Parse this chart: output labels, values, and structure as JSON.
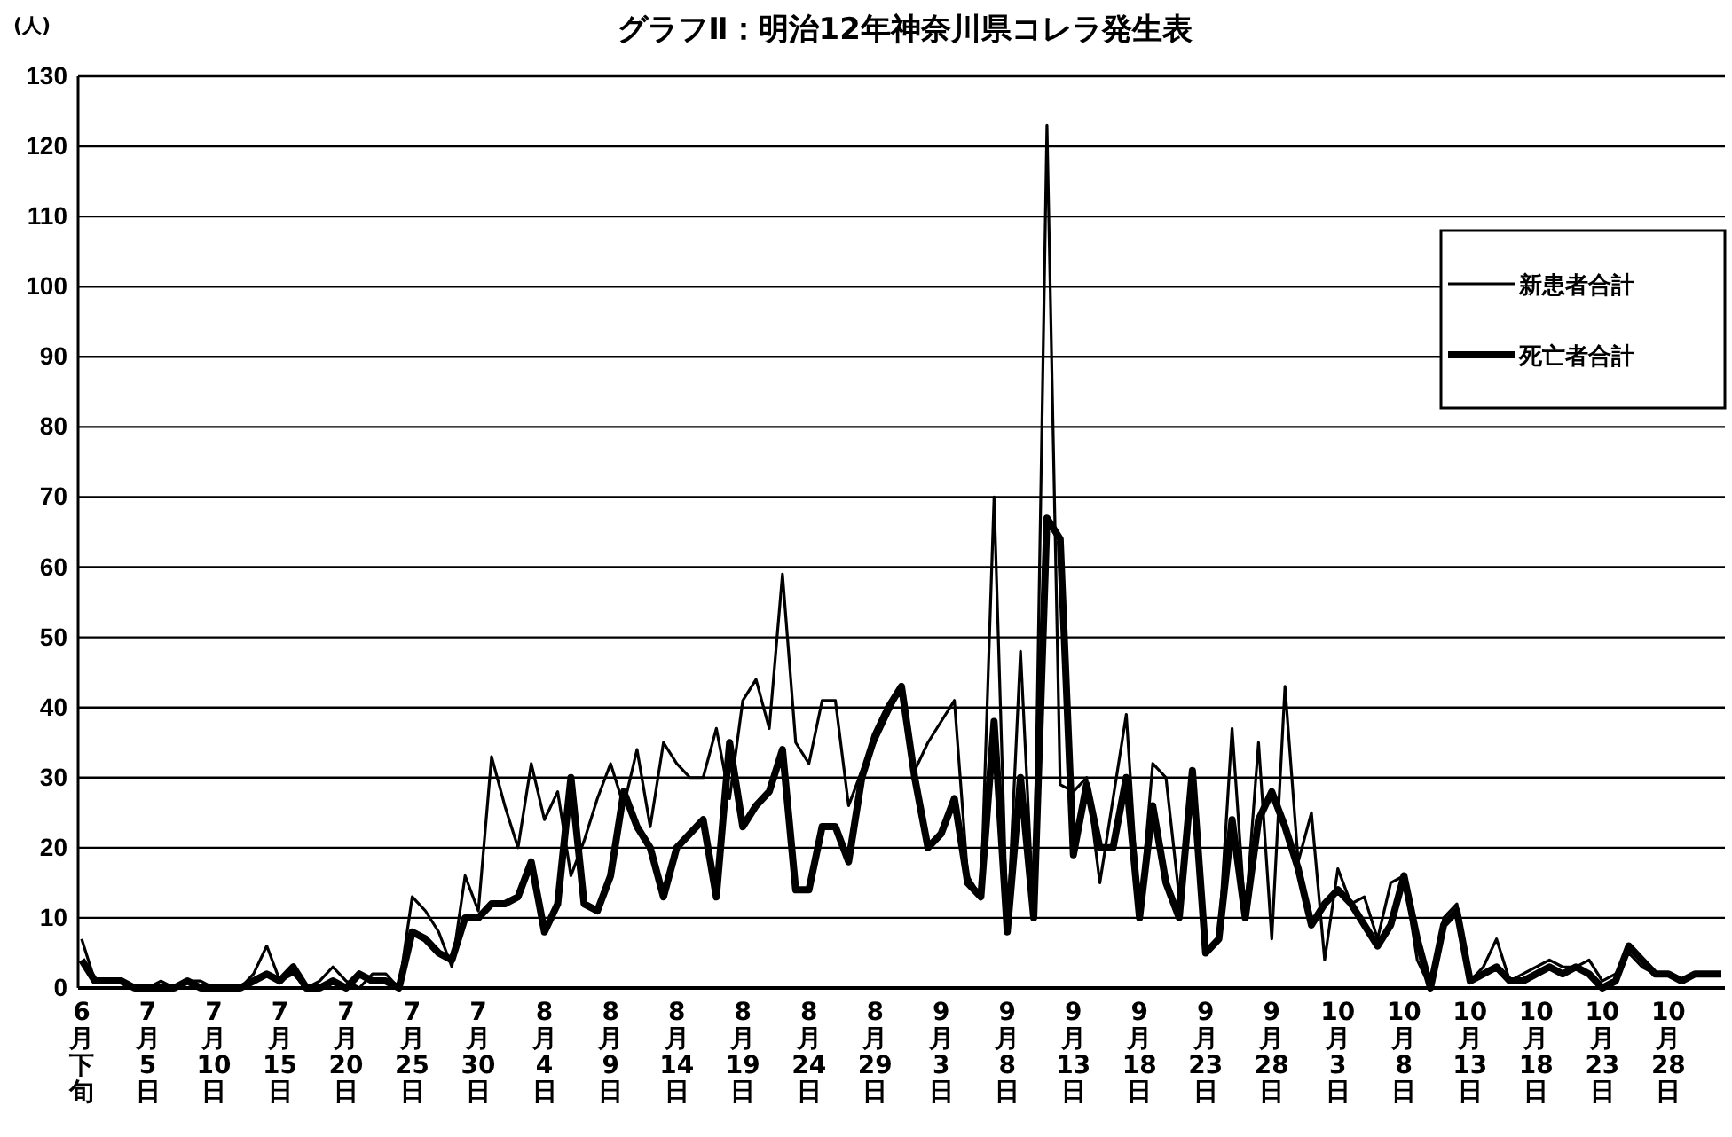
{
  "chart_data": {
    "type": "line",
    "title": "グラフⅡ：明治12年神奈川県コレラ発生表",
    "ylabel": "(人)",
    "categories": [
      "6月下旬",
      null,
      null,
      null,
      null,
      "7月5日",
      null,
      null,
      null,
      null,
      "7月10日",
      null,
      null,
      null,
      null,
      "7月15日",
      null,
      null,
      null,
      null,
      "7月20日",
      null,
      null,
      null,
      null,
      "7月25日",
      null,
      null,
      null,
      null,
      "7月30日",
      null,
      null,
      null,
      null,
      "8月4日",
      null,
      null,
      null,
      null,
      "8月9日",
      null,
      null,
      null,
      null,
      "8月14日",
      null,
      null,
      null,
      null,
      "8月19日",
      null,
      null,
      null,
      null,
      "8月24日",
      null,
      null,
      null,
      null,
      "8月29日",
      null,
      null,
      null,
      null,
      "9月3日",
      null,
      null,
      null,
      null,
      "9月8日",
      null,
      null,
      null,
      null,
      "9月13日",
      null,
      null,
      null,
      null,
      "9月18日",
      null,
      null,
      null,
      null,
      "9月23日",
      null,
      null,
      null,
      null,
      "9月28日",
      null,
      null,
      null,
      null,
      "10月3日",
      null,
      null,
      null,
      null,
      "10月8日",
      null,
      null,
      null,
      null,
      "10月13日",
      null,
      null,
      null,
      null,
      "10月18日",
      null,
      null,
      null,
      null,
      "10月23日",
      null,
      null,
      null,
      null,
      "10月28日",
      null,
      null,
      null,
      null
    ],
    "series": [
      {
        "name": "新患者合計",
        "color": "#000000",
        "values": [
          7,
          1,
          1,
          1,
          0,
          0,
          1,
          0,
          1,
          1,
          0,
          0,
          0,
          2,
          6,
          1,
          2,
          0,
          1,
          3,
          1,
          0,
          2,
          2,
          0,
          13,
          11,
          8,
          3,
          16,
          11,
          33,
          26,
          20,
          32,
          24,
          28,
          16,
          21,
          27,
          32,
          26,
          34,
          23,
          35,
          32,
          30,
          30,
          37,
          27,
          41,
          44,
          37,
          59,
          35,
          32,
          41,
          41,
          26,
          31,
          35,
          39,
          43,
          31,
          35,
          38,
          41,
          16,
          13,
          70,
          8,
          48,
          10,
          123,
          29,
          28,
          30,
          15,
          27,
          39,
          10,
          32,
          30,
          13,
          31,
          5,
          7,
          37,
          10,
          35,
          7,
          43,
          18,
          25,
          4,
          17,
          12,
          13,
          7,
          15,
          16,
          4,
          0,
          10,
          12,
          1,
          3,
          7,
          1,
          2,
          3,
          4,
          3,
          3,
          4,
          1,
          2,
          5,
          3,
          2,
          2,
          1,
          2,
          2,
          2
        ]
      },
      {
        "name": "死亡者合計",
        "color": "#000000",
        "values": [
          4,
          1,
          1,
          1,
          0,
          0,
          0,
          0,
          1,
          0,
          0,
          0,
          0,
          1,
          2,
          1,
          3,
          0,
          0,
          1,
          0,
          2,
          1,
          1,
          0,
          8,
          7,
          5,
          4,
          10,
          10,
          12,
          12,
          13,
          18,
          8,
          12,
          30,
          12,
          11,
          16,
          28,
          23,
          20,
          13,
          20,
          22,
          24,
          13,
          35,
          23,
          26,
          28,
          34,
          14,
          14,
          23,
          23,
          18,
          30,
          36,
          40,
          43,
          30,
          20,
          22,
          27,
          15,
          13,
          38,
          8,
          30,
          10,
          67,
          64,
          19,
          29,
          20,
          20,
          30,
          10,
          26,
          15,
          10,
          31,
          5,
          7,
          24,
          10,
          24,
          28,
          23,
          17,
          9,
          12,
          14,
          12,
          9,
          6,
          9,
          16,
          7,
          0,
          9,
          11,
          1,
          2,
          3,
          1,
          1,
          2,
          3,
          2,
          3,
          2,
          0,
          1,
          6,
          4,
          2,
          2,
          1,
          2,
          2,
          2
        ]
      }
    ],
    "ylim": [
      0,
      130
    ],
    "yticks": [
      0,
      10,
      20,
      30,
      40,
      50,
      60,
      70,
      80,
      90,
      100,
      110,
      120,
      130
    ],
    "grid": "y",
    "legend": "top right",
    "marker": "none",
    "line_style": "solid"
  }
}
